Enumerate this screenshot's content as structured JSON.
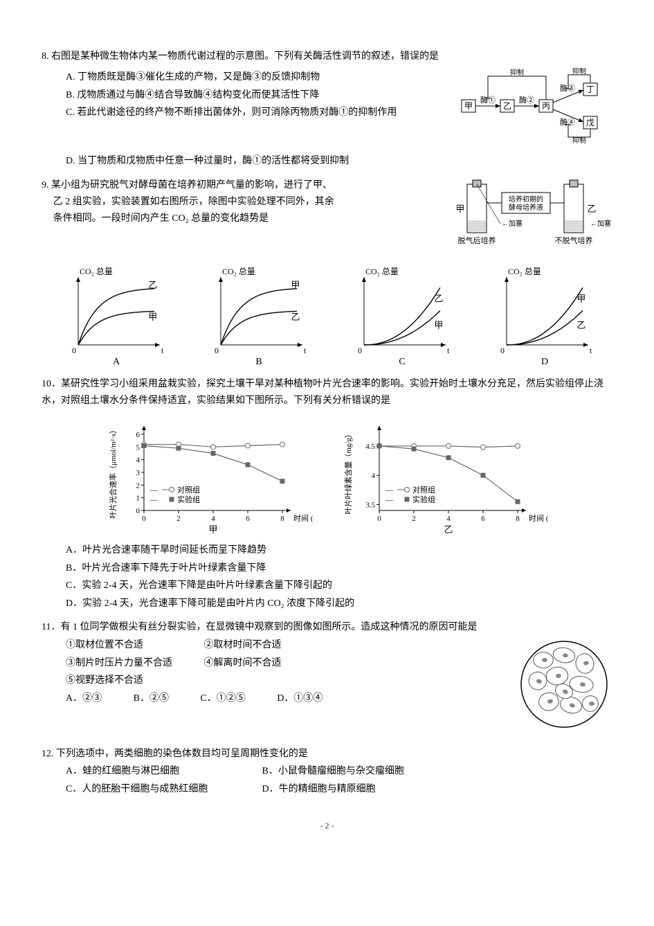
{
  "q8": {
    "stem": "8. 右图是某种微生物体内某一物质代谢过程的示意图。下列有关酶活性调节的叙述，错误的是",
    "A": "A. 丁物质既是酶③催化生成的产物，又是酶③的反馈抑制物",
    "B": "B. 戊物质通过与酶④结合导致酶④结构变化而使其活性下降",
    "C": "C. 若此代谢途径的终产物不断排出菌体外，则可消除丙物质对酶①的抑制作用",
    "D": "D. 当丁物质和戊物质中任意一种过量时，酶①的活性都将受到抑制",
    "diagram": {
      "nodes": [
        "甲",
        "乙",
        "丙",
        "丁",
        "戊"
      ],
      "enzymes": [
        "酶①",
        "酶②",
        "酶③",
        "酶④"
      ],
      "inhibit": "抑制",
      "stroke": "#000000",
      "fontsize": 12
    }
  },
  "q9": {
    "stem1": "9. 某小组为研究脱气对酵母菌在培养初期产气量的影响，进行了甲、",
    "stem2": "乙 2 组实验，实验装置如右图所示，除图中实验处理不同外，其余",
    "stem3": "条件相同。一段时间内产生 CO₂ 总量的变化趋势是",
    "apparatus": {
      "left_label": "甲",
      "right_label": "乙",
      "medium": "培养初期的酵母培养液",
      "stopper": "加塞",
      "left_cond": "脱气后培养",
      "right_cond": "不脱气培养",
      "tube_fill": "#cccccc",
      "liquid_fill": "#e8e8e8"
    },
    "charts": {
      "ylabel": "CO₂ 总量",
      "xlabel": "t",
      "A": {
        "upper": "乙",
        "lower": "甲",
        "shape": "sat"
      },
      "B": {
        "upper": "甲",
        "lower": "乙",
        "shape": "sat"
      },
      "C": {
        "upper": "乙",
        "lower": "甲",
        "shape": "exp"
      },
      "D": {
        "upper": "甲",
        "lower": "乙",
        "shape": "exp"
      },
      "axis_color": "#000",
      "curve_color": "#000"
    }
  },
  "q10": {
    "stem": "10．某研究性学习小组采用盆栽实验，探究土壤干旱对某种植物叶片光合速率的影响。实验开始时土壤水分充足，然后实验组停止浇水，对照组土壤水分条件保持适宜，实验结果如下图所示。下列有关分析错误的是",
    "chart1": {
      "title": "甲",
      "ylabel": "叶片光合速率（μmol/m²·s）",
      "xlabel": "时间 (d)",
      "xticks": [
        0,
        2,
        4,
        6,
        8
      ],
      "yticks": [
        0,
        1,
        2,
        3,
        4,
        5,
        6
      ],
      "ylim": [
        0,
        6
      ],
      "legend": [
        "对照组",
        "实验组"
      ],
      "control": {
        "x": [
          0,
          2,
          4,
          6,
          8
        ],
        "y": [
          5.2,
          5.2,
          5.0,
          5.1,
          5.2
        ],
        "marker": "o",
        "fill": "#ffffff",
        "stroke": "#666"
      },
      "exp": {
        "x": [
          0,
          2,
          4,
          6,
          8
        ],
        "y": [
          5.1,
          4.9,
          4.5,
          3.6,
          2.3
        ],
        "marker": "s",
        "fill": "#666",
        "stroke": "#666"
      }
    },
    "chart2": {
      "title": "乙",
      "ylabel": "叶片叶绿素含量（mg/g）",
      "xlabel": "时间 (d)",
      "xticks": [
        0,
        2,
        4,
        6,
        8
      ],
      "yticks": [
        3.5,
        4.0,
        4.5
      ],
      "ylim": [
        3.4,
        4.7
      ],
      "legend": [
        "对照组",
        "实验组"
      ],
      "control": {
        "x": [
          0,
          2,
          4,
          6,
          8
        ],
        "y": [
          4.5,
          4.5,
          4.5,
          4.48,
          4.5
        ],
        "marker": "o",
        "fill": "#ffffff",
        "stroke": "#666"
      },
      "exp": {
        "x": [
          0,
          2,
          4,
          6,
          8
        ],
        "y": [
          4.5,
          4.45,
          4.3,
          4.0,
          3.55
        ],
        "marker": "s",
        "fill": "#666",
        "stroke": "#666"
      }
    },
    "A": "A．叶片光合速率随干旱时间延长而呈下降趋势",
    "B": "B．叶片光合速率下降先于叶片叶绿素含量下降",
    "C": "C．实验 2-4 天，光合速率下降是由叶片叶绿素含量下降引起的",
    "D": "D．实验 2-4 天，光合速率下降可能是由叶片内 CO₂ 浓度下降引起的"
  },
  "q11": {
    "stem": "11．有 1 位同学做根尖有丝分裂实验，在显微镜中观察到的图像如图所示。造成这种情况的原因可能是",
    "o1": "①取材位置不合适",
    "o2": "②取材时间不合适",
    "o3": "③制片时压片力量不合适",
    "o4": "④解离时间不合适",
    "o5": "⑤视野选择不合适",
    "A": "A．②③",
    "B": "B．②⑤",
    "C": "C．①②⑤",
    "D": "D．①③④",
    "cells": {
      "circle_stroke": "#000",
      "cell_fill": "#fff",
      "cell_stroke": "#555"
    }
  },
  "q12": {
    "stem": "12. 下列选项中，两类细胞的染色体数目均可呈周期性变化的是",
    "A": "A．蛙的红细胞与淋巴细胞",
    "B": "B．小鼠骨髓瘤细胞与杂交瘤细胞",
    "C": "C．人的胚胎干细胞与成熟红细胞",
    "D": "D．牛的精细胞与精原细胞"
  },
  "footer": "- 2 -"
}
